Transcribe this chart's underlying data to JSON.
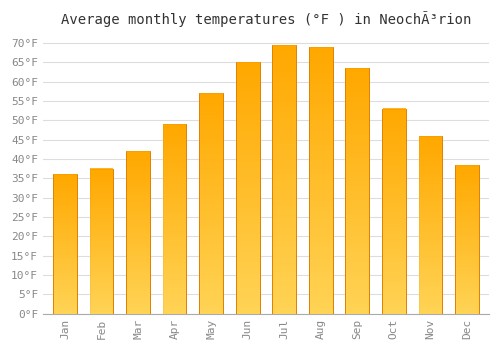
{
  "title": "Average monthly temperatures (°F ) in NeochÃ³rion",
  "months": [
    "Jan",
    "Feb",
    "Mar",
    "Apr",
    "May",
    "Jun",
    "Jul",
    "Aug",
    "Sep",
    "Oct",
    "Nov",
    "Dec"
  ],
  "values": [
    36.0,
    37.5,
    42.0,
    49.0,
    57.0,
    65.0,
    69.5,
    69.0,
    63.5,
    53.0,
    46.0,
    38.5
  ],
  "bar_color_face": "#FFBA00",
  "bar_color_edge": "#E08000",
  "background_color": "#FFFFFF",
  "grid_color": "#DDDDDD",
  "ylim": [
    0,
    72
  ],
  "ytick_step": 5,
  "title_fontsize": 10,
  "tick_fontsize": 8,
  "font_family": "monospace"
}
